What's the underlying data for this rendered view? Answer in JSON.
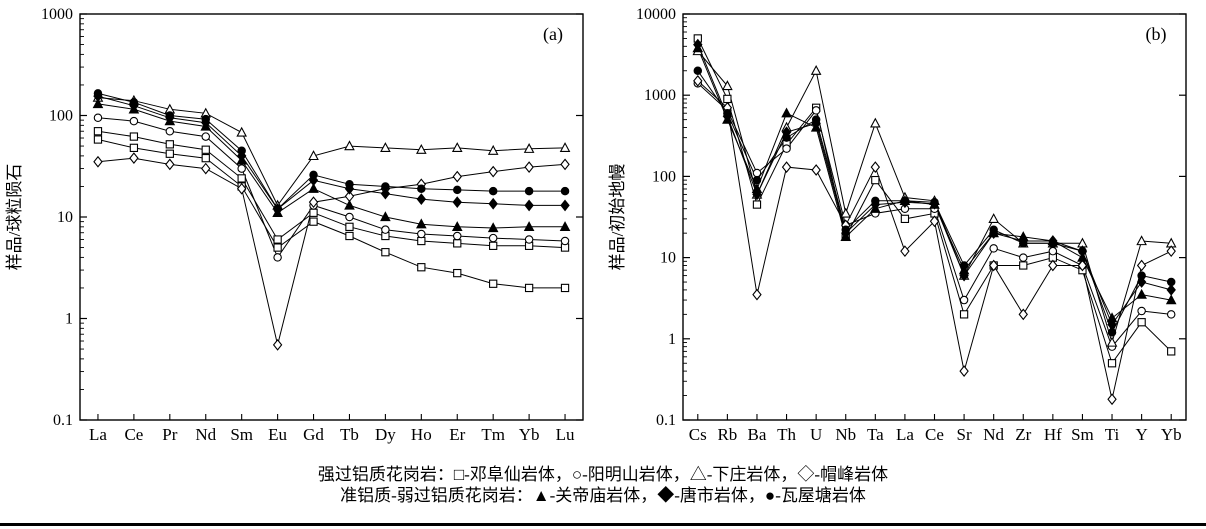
{
  "legend": {
    "line1": "强过铝质花岗岩：□-邓阜仙岩体，○-阳明山岩体，△-下庄岩体，◇-帽峰岩体",
    "line2": "准铝质-弱过铝质花岗岩：▲-关帝庙岩体，◆-唐市岩体，●-瓦屋塘岩体"
  },
  "chart_data": [
    {
      "type": "line",
      "panel_label": "(a)",
      "ylabel": "样品/球粒陨石",
      "yscale": "log",
      "ylim": [
        0.1,
        1000
      ],
      "yticks": [
        0.1,
        1,
        10,
        100,
        1000
      ],
      "grid": false,
      "legend_position": "none",
      "categories": [
        "La",
        "Ce",
        "Pr",
        "Nd",
        "Sm",
        "Eu",
        "Gd",
        "Tb",
        "Dy",
        "Ho",
        "Er",
        "Tm",
        "Yb",
        "Lu"
      ],
      "series": [
        {
          "name": "邓阜仙岩体-1",
          "marker": "square-open",
          "values": [
            70,
            62,
            52,
            46,
            24,
            6,
            11,
            8,
            6.5,
            5.8,
            5.5,
            5.2,
            5.2,
            5
          ]
        },
        {
          "name": "邓阜仙岩体-2",
          "marker": "square-open",
          "values": [
            58,
            48,
            42,
            38,
            20,
            5,
            9,
            6.5,
            4.5,
            3.2,
            2.8,
            2.2,
            2,
            2
          ]
        },
        {
          "name": "阳明山岩体",
          "marker": "circle-open",
          "values": [
            95,
            88,
            70,
            62,
            30,
            4,
            13,
            10,
            7.5,
            6.8,
            6.5,
            6.2,
            6,
            5.8
          ]
        },
        {
          "name": "下庄岩体",
          "marker": "triangle-open",
          "values": [
            150,
            140,
            115,
            105,
            68,
            13,
            40,
            50,
            48,
            46,
            48,
            45,
            47,
            48
          ]
        },
        {
          "name": "帽峰岩体",
          "marker": "diamond-open",
          "values": [
            35,
            38,
            33,
            30,
            19,
            0.55,
            14,
            16,
            19,
            21,
            25,
            28,
            31,
            33
          ]
        },
        {
          "name": "关帝庙岩体",
          "marker": "triangle-filled",
          "values": [
            130,
            115,
            88,
            78,
            36,
            11,
            19,
            13,
            10,
            8.5,
            8,
            7.8,
            8,
            8
          ]
        },
        {
          "name": "唐市岩体",
          "marker": "diamond-filled",
          "values": [
            155,
            125,
            95,
            85,
            40,
            12,
            23,
            19,
            17,
            15,
            14,
            13.5,
            13,
            13
          ]
        },
        {
          "name": "瓦屋塘岩体",
          "marker": "circle-filled",
          "values": [
            165,
            135,
            100,
            92,
            45,
            12,
            26,
            21,
            20,
            19,
            18.5,
            18,
            18,
            18
          ]
        }
      ]
    },
    {
      "type": "line",
      "panel_label": "(b)",
      "ylabel": "样品/初始地幔",
      "yscale": "log",
      "ylim": [
        0.1,
        10000
      ],
      "yticks": [
        0.1,
        1,
        10,
        100,
        1000,
        10000
      ],
      "grid": false,
      "legend_position": "none",
      "categories": [
        "Cs",
        "Rb",
        "Ba",
        "Th",
        "U",
        "Nb",
        "Ta",
        "La",
        "Ce",
        "Sr",
        "Nd",
        "Zr",
        "Hf",
        "Sm",
        "Ti",
        "Y",
        "Yb"
      ],
      "series": [
        {
          "name": "邓阜仙岩体",
          "marker": "square-open",
          "values": [
            5000,
            900,
            45,
            250,
            700,
            18,
            90,
            30,
            35,
            2,
            8,
            8,
            10,
            7,
            0.5,
            1.6,
            0.7
          ]
        },
        {
          "name": "阳明山岩体",
          "marker": "circle-open",
          "values": [
            1400,
            650,
            110,
            220,
            650,
            25,
            35,
            40,
            40,
            3,
            13,
            10,
            12,
            8,
            0.8,
            2.2,
            2
          ]
        },
        {
          "name": "下庄岩体",
          "marker": "triangle-open",
          "values": [
            3500,
            1300,
            60,
            400,
            2000,
            35,
            450,
            55,
            50,
            6,
            30,
            15,
            15,
            15,
            0.9,
            16,
            15
          ]
        },
        {
          "name": "帽峰岩体",
          "marker": "diamond-open",
          "values": [
            1500,
            700,
            3.5,
            130,
            120,
            25,
            130,
            12,
            28,
            0.4,
            8,
            2,
            8,
            8,
            0.18,
            8,
            12
          ]
        },
        {
          "name": "关帝庙岩体",
          "marker": "triangle-filled",
          "values": [
            3800,
            500,
            70,
            600,
            400,
            18,
            40,
            50,
            45,
            7,
            20,
            18,
            16,
            10,
            1.8,
            3.5,
            3
          ]
        },
        {
          "name": "唐市岩体",
          "marker": "diamond-filled",
          "values": [
            4200,
            550,
            60,
            350,
            450,
            20,
            45,
            48,
            46,
            6,
            20,
            16,
            16,
            12,
            1.5,
            5,
            4
          ]
        },
        {
          "name": "瓦屋塘岩体",
          "marker": "circle-filled",
          "values": [
            2000,
            600,
            90,
            300,
            500,
            22,
            50,
            50,
            48,
            8,
            22,
            15,
            15,
            12,
            1.2,
            6,
            5
          ]
        }
      ]
    }
  ]
}
